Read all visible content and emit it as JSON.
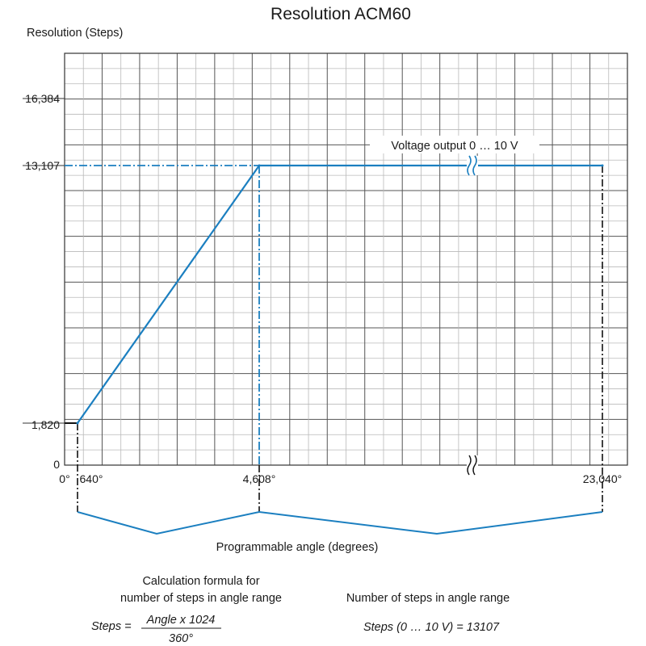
{
  "chart_data": {
    "type": "line",
    "title": "Resolution ACM60",
    "ylabel": "Resolution (Steps)",
    "xlabel": "Programmable angle (degrees)",
    "y_ticks": [
      {
        "value": 0,
        "label": "0"
      },
      {
        "value": 1820,
        "label": "1,820"
      },
      {
        "value": 13107,
        "label": "13,107"
      },
      {
        "value": 16384,
        "label": "16,384"
      }
    ],
    "x_ticks": [
      {
        "value": 0,
        "label": "0°"
      },
      {
        "value": 640,
        "label": "640°"
      },
      {
        "value": 4608,
        "label": "4,608°"
      },
      {
        "value": 23040,
        "label": "23,040°"
      }
    ],
    "series": [
      {
        "name": "Voltage output 0 … 10 V",
        "x": [
          640,
          4608,
          23040
        ],
        "y": [
          1820,
          13107,
          13107
        ]
      }
    ],
    "x_axis_break": true,
    "grid": true,
    "line_color": "#1b7fc0",
    "annotations": {
      "series_label": "Voltage output 0 … 10 V",
      "formula_heading_line1": "Calculation formula for",
      "formula_heading_line2": "number of steps in angle range",
      "formula_lhs": "Steps =",
      "formula_numerator": "Angle x 1024",
      "formula_denominator": "360°",
      "steps_heading": "Number of steps in angle range",
      "steps_value": "Steps (0 … 10 V) = 13107"
    }
  }
}
